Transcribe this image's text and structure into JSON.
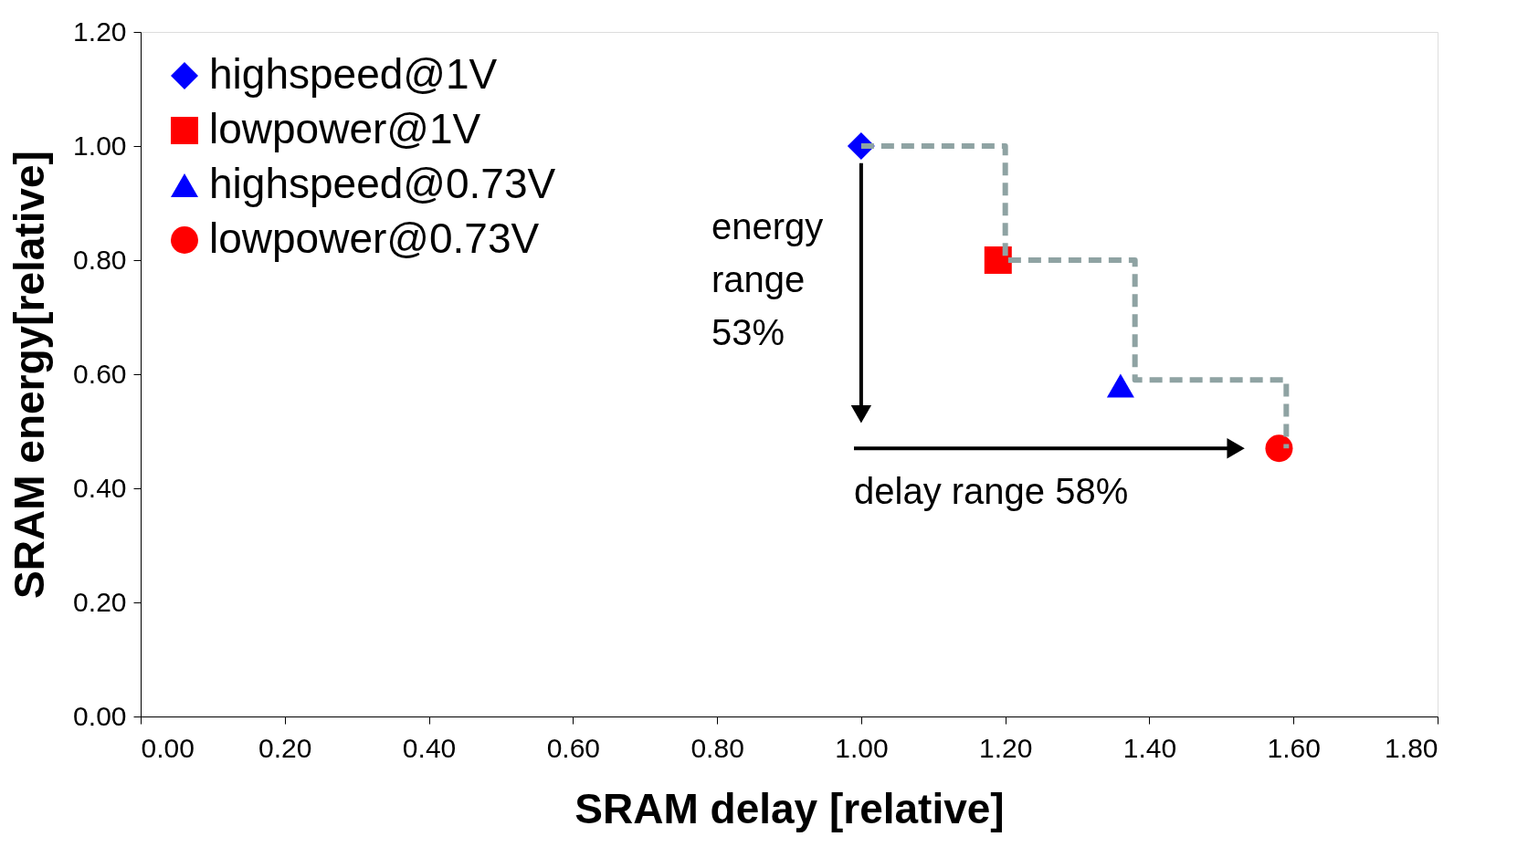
{
  "chart_data": {
    "type": "scatter",
    "xlabel": "SRAM delay [relative]",
    "ylabel": "SRAM energy[relative]",
    "xlim": [
      0,
      1.8
    ],
    "ylim": [
      0,
      1.2
    ],
    "xticks": [
      {
        "value": 0,
        "label": "0.00"
      },
      {
        "value": 0.2,
        "label": "0.20"
      },
      {
        "value": 0.4,
        "label": "0.40"
      },
      {
        "value": 0.6,
        "label": "0.60"
      },
      {
        "value": 0.8,
        "label": "0.80"
      },
      {
        "value": 1.0,
        "label": "1.00"
      },
      {
        "value": 1.2,
        "label": "1.20"
      },
      {
        "value": 1.4,
        "label": "1.40"
      },
      {
        "value": 1.6,
        "label": "1.60"
      },
      {
        "value": 1.8,
        "label": "1.80"
      }
    ],
    "yticks": [
      {
        "value": 0,
        "label": "0.00"
      },
      {
        "value": 0.2,
        "label": "0.20"
      },
      {
        "value": 0.4,
        "label": "0.40"
      },
      {
        "value": 0.6,
        "label": "0.60"
      },
      {
        "value": 0.8,
        "label": "0.80"
      },
      {
        "value": 1.0,
        "label": "1.00"
      },
      {
        "value": 1.2,
        "label": "1.20"
      }
    ],
    "grid": false,
    "legend": "top left",
    "series": [
      {
        "name": "highspeed@1V",
        "color": "#0000ff",
        "marker": "diamond",
        "x": [
          1.0
        ],
        "values": [
          1.0
        ]
      },
      {
        "name": "lowpower@1V",
        "color": "#ff0000",
        "marker": "square",
        "x": [
          1.19
        ],
        "values": [
          0.8
        ]
      },
      {
        "name": "highspeed@0.73V",
        "color": "#0000ff",
        "marker": "triangle",
        "x": [
          1.36
        ],
        "values": [
          0.58
        ]
      },
      {
        "name": "lowpower@0.73V",
        "color": "#ff0000",
        "marker": "circle",
        "x": [
          1.58
        ],
        "values": [
          0.47
        ]
      },
      {
        "type": "step",
        "color": "#8fa3a3",
        "line_style": "dashed",
        "marker": "none",
        "x": [
          1.0,
          1.2,
          1.38,
          1.59
        ],
        "values": [
          1.0,
          0.8,
          0.59,
          0.47
        ]
      },
      {
        "type": "line",
        "color": "#000000",
        "line_style": "solid",
        "marker": "triangle",
        "x": [
          1.0,
          1.0
        ],
        "values": [
          0.97,
          0.53
        ]
      },
      {
        "type": "line",
        "color": "#000000",
        "line_style": "solid",
        "marker": "triangle",
        "x": [
          0.99,
          1.52
        ],
        "values": [
          0.47,
          0.47
        ]
      }
    ],
    "annotations": [
      "energy range 53%",
      "delay range 58%"
    ]
  }
}
